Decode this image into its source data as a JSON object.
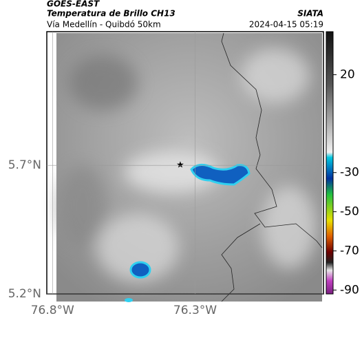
{
  "header": {
    "title": "GOES-EAST",
    "subtitle": "Temperatura de Brillo CH13",
    "source": "SIATA",
    "region": "Vía Medellín - Quibdó 50km",
    "timestamp": "2024-04-15 05:19"
  },
  "map": {
    "lonlim": [
      -76.82,
      -75.85
    ],
    "latlim": [
      5.2,
      6.22
    ],
    "lat_ticks": [
      {
        "value": 5.7,
        "label": "5.7°N"
      },
      {
        "value": 5.2,
        "label": "5.2°N"
      }
    ],
    "lon_ticks": [
      {
        "value": -76.8,
        "label": "76.8°W"
      },
      {
        "value": -76.3,
        "label": "76.3°W"
      }
    ],
    "grid": true
  },
  "colorbar": {
    "lim": [
      -92,
      42
    ],
    "ticks": [
      20,
      -30,
      -50,
      -70,
      -90
    ]
  }
}
